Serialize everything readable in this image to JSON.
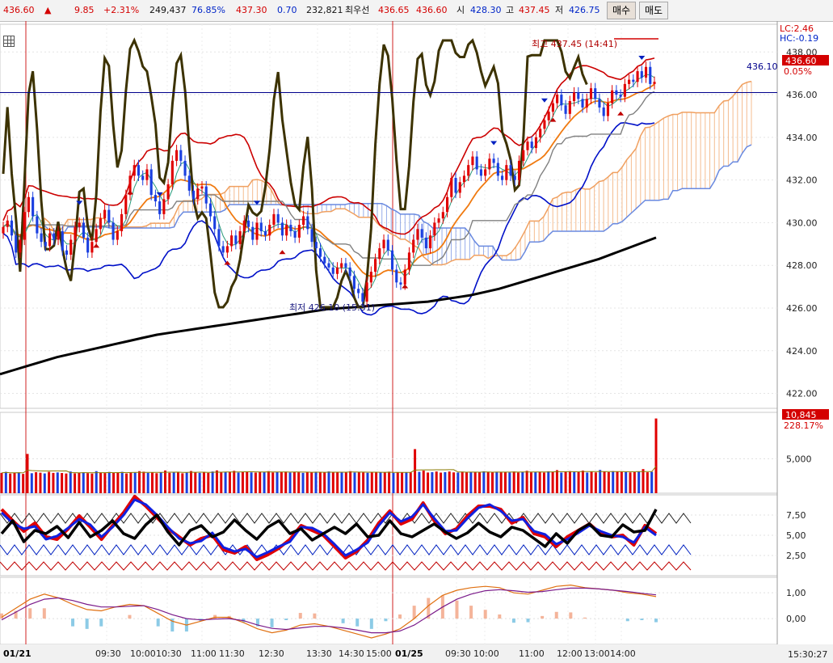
{
  "toolbar": {
    "price": "436.60",
    "arrow": "▲",
    "change": "9.85",
    "change_pct": "+2.31%",
    "volume": "249,437",
    "ratio": "76.85%",
    "bid": "437.30",
    "bid_diff": "0.70",
    "open_int": "232,821",
    "best_label": "최우선",
    "best_ask": "436.65",
    "best_bid": "436.60",
    "open_label": "시",
    "open": "428.30",
    "high_label": "고",
    "high": "437.45",
    "low_label": "저",
    "low": "426.75",
    "buy_label": "매수",
    "sell_label": "매도"
  },
  "labels": {
    "lc": "LC:2.46",
    "hc": "HC:-0.19",
    "last_price": "436.60",
    "last_pct": "0.05%",
    "hline_value": "436.10",
    "high_note": "최고 437.45 (14:41)",
    "low_note": "최저 426.10 (15:31)",
    "vol_last": "10,845",
    "vol_pct": "228.17%",
    "current_time": "15:30:27"
  },
  "colors": {
    "up": "#e00000",
    "down": "#1a3fe0",
    "envelope": "#cc0000",
    "bollinger_low": "#0010c8",
    "ma_long": "#000000",
    "osc": "#3c3200",
    "cloud_upper": "#f0a060",
    "cloud_lower": "#6a8ae0",
    "hline": "#00008b"
  },
  "chart_data": [
    {
      "type": "candlestick",
      "title": "",
      "y_range": [
        421.3,
        439.3
      ],
      "y_ticks": [
        "438.00",
        "436.00",
        "434.00",
        "432.00",
        "430.00",
        "428.00",
        "426.00",
        "424.00",
        "422.00"
      ],
      "x_ticks": [
        "01/21",
        "09:30",
        "10:00",
        "10:30",
        "11:00",
        "11:30",
        "12:30",
        "13:30",
        "14:30",
        "15:00",
        "01/25",
        "09:30",
        "10:00",
        "11:00",
        "12:00",
        "13:00",
        "14:00"
      ],
      "day_boundaries": [
        "01/21",
        "01/25"
      ],
      "close": [
        429.8,
        430.1,
        429.4,
        428.6,
        429.2,
        430.5,
        431.2,
        430.3,
        429.5,
        429.1,
        428.9,
        429.5,
        429.2,
        429.6,
        428.7,
        428.5,
        429.2,
        429.8,
        430.0,
        429.3,
        428.6,
        429.1,
        429.7,
        430.2,
        430.6,
        430.0,
        429.2,
        429.6,
        430.4,
        431.3,
        432.2,
        432.7,
        432.2,
        432.0,
        432.5,
        431.3,
        431.0,
        430.4,
        431.1,
        431.8,
        432.9,
        433.4,
        432.9,
        432.2,
        431.5,
        431.1,
        431.6,
        431.7,
        430.9,
        430.3,
        429.7,
        428.9,
        428.6,
        428.9,
        429.4,
        429.0,
        429.6,
        430.1,
        429.8,
        429.2,
        430.0,
        429.6,
        429.4,
        429.9,
        430.4,
        430.0,
        429.4,
        429.9,
        429.6,
        429.3,
        429.9,
        430.3,
        429.7,
        429.1,
        428.8,
        428.4,
        428.1,
        427.9,
        427.6,
        427.9,
        428.1,
        427.9,
        427.5,
        426.9,
        426.7,
        426.3,
        427.2,
        427.7,
        428.3,
        428.8,
        429.2,
        428.7,
        427.8,
        427.2,
        427.1,
        427.8,
        428.6,
        429.2,
        429.7,
        429.3,
        428.8,
        429.4,
        430.0,
        430.2,
        430.5,
        431.2,
        432.1,
        431.4,
        431.9,
        432.2,
        432.7,
        433.1,
        432.5,
        432.2,
        432.5,
        433.0,
        432.8,
        432.2,
        432.0,
        432.7,
        432.2,
        432.0,
        432.9,
        433.4,
        433.8,
        433.5,
        434.0,
        434.4,
        434.8,
        435.2,
        435.6,
        436.0,
        435.5,
        435.1,
        435.7,
        436.1,
        435.8,
        435.4,
        435.8,
        436.3,
        435.8,
        435.4,
        435.0,
        435.6,
        436.2,
        436.0,
        435.9,
        436.5,
        436.7,
        436.6,
        437.1,
        436.8,
        437.3,
        436.5,
        436.6
      ],
      "ma_long": [
        422.9,
        423.1,
        423.3,
        423.5,
        423.7,
        423.85,
        424.0,
        424.15,
        424.3,
        424.45,
        424.6,
        424.75,
        424.85,
        424.95,
        425.05,
        425.15,
        425.25,
        425.35,
        425.45,
        425.55,
        425.65,
        425.75,
        425.85,
        425.95,
        426.0,
        426.05,
        426.1,
        426.15,
        426.2,
        426.25,
        426.3,
        426.4,
        426.5,
        426.6,
        426.75,
        426.9,
        427.1,
        427.3,
        427.5,
        427.7,
        427.9,
        428.1,
        428.3,
        428.55,
        428.8,
        429.05,
        429.3
      ],
      "note_high": "최고 437.45 (14:41)",
      "note_low": "최저 426.10 (15:31)",
      "hline": 436.1
    },
    {
      "type": "bar",
      "title": "",
      "y_tick": "5,000",
      "last_value": "10,845",
      "last_pct": "228.17%",
      "y_max": 11500,
      "values": [
        2950,
        3100,
        2850,
        2980,
        3020,
        2800,
        5700,
        2900,
        3050,
        2980,
        2870,
        3100,
        2950,
        3020,
        2930,
        2860,
        3150,
        2880,
        2990,
        3040,
        2910,
        2850,
        3200,
        3000,
        2920,
        3080,
        2950,
        2990,
        3100,
        2860,
        3050,
        2980,
        3200,
        3120,
        2960,
        3050,
        2900,
        3010,
        3300,
        2960,
        3040,
        3100,
        2890,
        3020,
        3220,
        3000,
        2950,
        3070,
        2950,
        3150,
        3310,
        3000,
        3080,
        3120,
        3250,
        3000,
        3050,
        3160,
        3020,
        2990,
        3120,
        3080,
        3200,
        3010,
        3080,
        3050,
        3130,
        3000,
        3090,
        3040,
        2950,
        3060,
        3010,
        3120,
        3050,
        3000,
        3160,
        3020,
        3100,
        3030,
        3000,
        3200,
        3010,
        3050,
        3020,
        2960,
        3100,
        3000,
        3040,
        3000,
        3130,
        2950,
        3060,
        2990,
        3030,
        3010,
        6400,
        3100,
        3280,
        3000,
        3050,
        3150,
        2990,
        3060,
        3150,
        3020,
        3000,
        3130,
        3000,
        3050,
        3100,
        3010,
        3180,
        3050,
        3000,
        3120,
        3040,
        3090,
        3010,
        3150,
        3000,
        3100,
        3250,
        3030,
        3050,
        3120,
        3000,
        3180,
        3080,
        3350,
        3000,
        3150,
        3200,
        3100,
        3060,
        3280,
        3000,
        3150,
        3020,
        3380,
        3120,
        3050,
        3200,
        3150,
        3100,
        3080,
        3020,
        3050,
        3150,
        3500,
        3040,
        3100,
        10845
      ]
    },
    {
      "type": "line",
      "title": "",
      "y_ticks": [
        "7,50",
        "5,00",
        "2,50"
      ],
      "y_range": [
        0,
        10
      ],
      "series": [
        {
          "values": [
            8.2,
            6.8,
            5.5,
            6.5,
            4.8,
            4.5,
            5.8,
            7.4,
            6.0,
            4.5,
            6.2,
            7.8,
            9.8,
            8.6,
            7.2,
            5.8,
            4.8,
            3.8,
            4.6,
            5.0,
            3.2,
            2.8,
            3.6,
            2.0,
            2.6,
            3.4,
            4.5,
            6.2,
            5.6,
            5.0,
            3.6,
            2.2,
            3.0,
            4.4,
            6.5,
            8.0,
            6.4,
            7.0,
            9.0,
            6.8,
            5.2,
            5.8,
            7.4,
            8.6,
            8.6,
            8.2,
            6.5,
            7.2,
            5.2,
            4.8,
            3.6,
            4.8,
            5.6,
            6.4,
            5.2,
            4.8,
            5.0,
            3.8,
            6.2,
            5.2
          ]
        },
        {
          "values": [
            7.8,
            6.5,
            5.8,
            6.1,
            4.5,
            4.9,
            5.9,
            7.0,
            6.3,
            4.8,
            6.0,
            7.5,
            9.4,
            8.8,
            7.5,
            6.0,
            4.6,
            4.0,
            4.3,
            5.3,
            3.5,
            3.0,
            3.3,
            2.3,
            2.9,
            3.6,
            4.2,
            6.0,
            5.9,
            5.2,
            3.9,
            2.5,
            3.2,
            4.1,
            6.2,
            7.8,
            6.7,
            7.3,
            8.8,
            7.1,
            5.5,
            5.6,
            7.1,
            8.4,
            8.8,
            8.0,
            6.8,
            7.0,
            5.5,
            5.1,
            3.9,
            4.5,
            5.3,
            6.2,
            5.5,
            5.0,
            4.8,
            4.1,
            6.0,
            5.0
          ]
        },
        {
          "values": [
            5.2,
            6.8,
            4.2,
            5.6,
            5.2,
            6.1,
            4.7,
            6.6,
            4.8,
            5.6,
            6.8,
            5.2,
            4.6,
            6.3,
            7.5,
            5.4,
            3.8,
            5.6,
            6.2,
            4.8,
            5.4,
            6.9,
            5.6,
            4.5,
            6.0,
            6.8,
            5.2,
            5.8,
            4.4,
            5.2,
            6.0,
            5.2,
            6.4,
            4.8,
            5.0,
            6.8,
            5.2,
            4.8,
            5.6,
            6.4,
            5.4,
            4.6,
            5.3,
            6.5,
            5.4,
            4.8,
            6.0,
            5.6,
            4.6,
            3.6,
            5.2,
            4.0,
            5.6,
            6.4,
            5.0,
            4.8,
            6.3,
            5.4,
            5.6,
            8.2
          ]
        }
      ]
    },
    {
      "type": "line",
      "title": "",
      "y_ticks": [
        "1,00",
        "0,00"
      ],
      "y_range": [
        -1.0,
        1.6
      ],
      "series": [
        {
          "values": [
            0.05,
            0.4,
            0.75,
            0.95,
            0.8,
            0.55,
            0.35,
            0.3,
            0.45,
            0.55,
            0.5,
            0.2,
            -0.1,
            -0.25,
            -0.1,
            0.05,
            0.05,
            -0.15,
            -0.4,
            -0.55,
            -0.45,
            -0.25,
            -0.2,
            -0.3,
            -0.45,
            -0.6,
            -0.75,
            -0.6,
            -0.4,
            0.0,
            0.5,
            0.9,
            1.1,
            1.2,
            1.25,
            1.2,
            1.0,
            0.95,
            1.1,
            1.25,
            1.3,
            1.2,
            1.15,
            1.1,
            1.0,
            0.95,
            0.85
          ]
        },
        {
          "values": [
            -0.05,
            0.25,
            0.55,
            0.75,
            0.8,
            0.7,
            0.55,
            0.45,
            0.45,
            0.48,
            0.5,
            0.35,
            0.15,
            0.0,
            -0.05,
            -0.02,
            0.0,
            -0.08,
            -0.25,
            -0.38,
            -0.42,
            -0.36,
            -0.3,
            -0.3,
            -0.36,
            -0.45,
            -0.55,
            -0.55,
            -0.48,
            -0.25,
            0.1,
            0.45,
            0.75,
            0.95,
            1.08,
            1.12,
            1.08,
            1.02,
            1.05,
            1.12,
            1.18,
            1.18,
            1.15,
            1.1,
            1.05,
            0.98,
            0.92
          ]
        }
      ]
    }
  ]
}
